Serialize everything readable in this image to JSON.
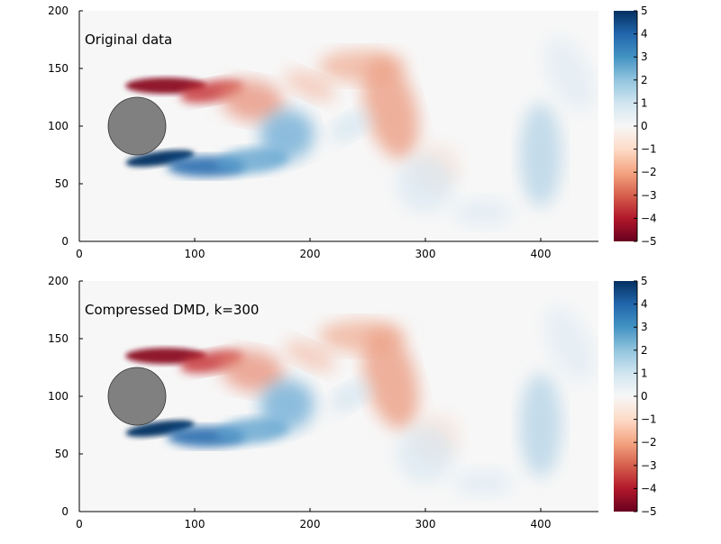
{
  "chart_data": [
    {
      "type": "heatmap",
      "annotation": "Original data",
      "x_range": [
        0,
        450
      ],
      "y_range": [
        0,
        200
      ],
      "x_ticks": [
        0,
        100,
        200,
        300,
        400
      ],
      "y_ticks": [
        0,
        50,
        100,
        150,
        200
      ],
      "colorbar": {
        "min": -5,
        "max": 5,
        "ticks": [
          5,
          4,
          3,
          2,
          1,
          0,
          -1,
          -2,
          -3,
          -4,
          -5
        ],
        "colormap": "RdBu"
      },
      "obstacle": {
        "shape": "circle",
        "center": [
          50,
          100
        ],
        "radius": 25,
        "color": "#808080"
      },
      "grid": false
    },
    {
      "type": "heatmap",
      "annotation": "Compressed DMD, k=300",
      "x_range": [
        0,
        450
      ],
      "y_range": [
        0,
        200
      ],
      "x_ticks": [
        0,
        100,
        200,
        300,
        400
      ],
      "y_ticks": [
        0,
        50,
        100,
        150,
        200
      ],
      "colorbar": {
        "min": -5,
        "max": 5,
        "ticks": [
          5,
          4,
          3,
          2,
          1,
          0,
          -1,
          -2,
          -3,
          -4,
          -5
        ],
        "colormap": "RdBu"
      },
      "obstacle": {
        "shape": "circle",
        "center": [
          50,
          100
        ],
        "radius": 25,
        "color": "#808080"
      },
      "grid": false
    }
  ]
}
